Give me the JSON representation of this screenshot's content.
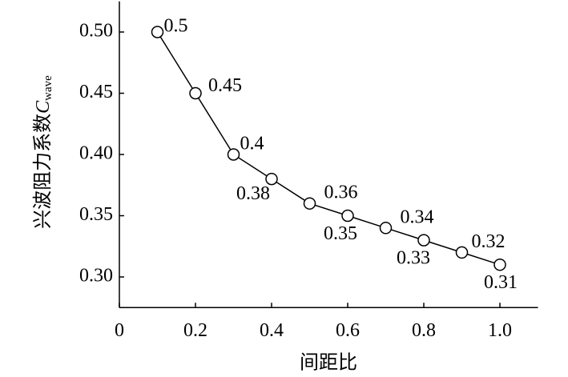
{
  "chart_data": {
    "type": "line",
    "x_label": "间距比",
    "y_label": {
      "text": "兴波阻力系数",
      "symbol": "C",
      "subscript": "wave"
    },
    "x": [
      0.1,
      0.2,
      0.3,
      0.4,
      0.5,
      0.6,
      0.7,
      0.8,
      0.9,
      1.0
    ],
    "series": [
      {
        "color": "#000000",
        "values": [
          0.5,
          0.45,
          0.4,
          0.38,
          0.36,
          0.35,
          0.34,
          0.33,
          0.32,
          0.31
        ]
      }
    ],
    "xlim": [
      0,
      1.1
    ],
    "xticks": [
      0,
      0.2,
      0.4,
      0.6,
      0.8,
      {
        "value": 1,
        "label": "1.0"
      }
    ],
    "ylim": [
      0.275,
      0.525
    ],
    "yticks": [
      {
        "value": 0.3,
        "label": "0.30"
      },
      0.35,
      {
        "value": 0.4,
        "label": "0.40"
      },
      0.45,
      {
        "value": 0.5,
        "label": "0.50"
      }
    ]
  }
}
